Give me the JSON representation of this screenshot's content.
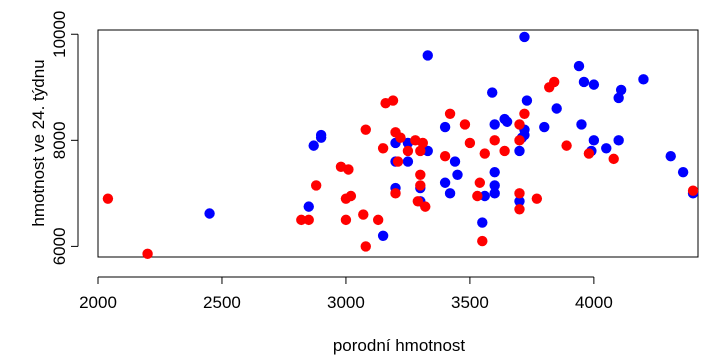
{
  "chart_data": {
    "type": "scatter",
    "title": "",
    "xlabel": "porodní hmotnost",
    "ylabel": "hmotnost ve 24. týdnu",
    "xlim": [
      2000,
      4420
    ],
    "ylim": [
      5800,
      10080
    ],
    "x_ticks": [
      "2000",
      "2500",
      "3000",
      "3500",
      "4000"
    ],
    "y_ticks": [
      "6000",
      "8000",
      "10000"
    ],
    "grid": false,
    "legend": "none",
    "series": [
      {
        "color": "#0000ff",
        "points": [
          [
            2450,
            6620
          ],
          [
            2850,
            6750
          ],
          [
            2870,
            7900
          ],
          [
            2900,
            8050
          ],
          [
            2900,
            8100
          ],
          [
            3150,
            6200
          ],
          [
            3200,
            7100
          ],
          [
            3200,
            7600
          ],
          [
            3200,
            7950
          ],
          [
            3250,
            7600
          ],
          [
            3250,
            7950
          ],
          [
            3300,
            6850
          ],
          [
            3300,
            7100
          ],
          [
            3330,
            7800
          ],
          [
            3330,
            9600
          ],
          [
            3400,
            7200
          ],
          [
            3400,
            8250
          ],
          [
            3420,
            7000
          ],
          [
            3440,
            7600
          ],
          [
            3450,
            7350
          ],
          [
            3550,
            6450
          ],
          [
            3560,
            6950
          ],
          [
            3590,
            8900
          ],
          [
            3600,
            7000
          ],
          [
            3600,
            7150
          ],
          [
            3600,
            7400
          ],
          [
            3600,
            8300
          ],
          [
            3640,
            8400
          ],
          [
            3650,
            8350
          ],
          [
            3700,
            6850
          ],
          [
            3700,
            7800
          ],
          [
            3710,
            8050
          ],
          [
            3720,
            8200
          ],
          [
            3720,
            8100
          ],
          [
            3720,
            9950
          ],
          [
            3730,
            8750
          ],
          [
            3800,
            8250
          ],
          [
            3850,
            8600
          ],
          [
            3940,
            9400
          ],
          [
            3950,
            8300
          ],
          [
            3960,
            9100
          ],
          [
            3990,
            7800
          ],
          [
            4000,
            8000
          ],
          [
            4000,
            9050
          ],
          [
            4050,
            7850
          ],
          [
            4100,
            8000
          ],
          [
            4100,
            8800
          ],
          [
            4110,
            8950
          ],
          [
            4200,
            9150
          ],
          [
            4310,
            7700
          ],
          [
            4360,
            7400
          ],
          [
            4400,
            7000
          ]
        ]
      },
      {
        "color": "#ff0000",
        "points": [
          [
            2040,
            6900
          ],
          [
            2200,
            5860
          ],
          [
            2820,
            6500
          ],
          [
            2850,
            6500
          ],
          [
            2880,
            7150
          ],
          [
            2980,
            7500
          ],
          [
            3000,
            6500
          ],
          [
            3000,
            6900
          ],
          [
            3010,
            7450
          ],
          [
            3020,
            6950
          ],
          [
            3070,
            6600
          ],
          [
            3080,
            6000
          ],
          [
            3080,
            8200
          ],
          [
            3130,
            6500
          ],
          [
            3150,
            7850
          ],
          [
            3160,
            8700
          ],
          [
            3190,
            8750
          ],
          [
            3200,
            7000
          ],
          [
            3200,
            8150
          ],
          [
            3210,
            7600
          ],
          [
            3220,
            8050
          ],
          [
            3250,
            7800
          ],
          [
            3280,
            8000
          ],
          [
            3290,
            6850
          ],
          [
            3300,
            7150
          ],
          [
            3300,
            7350
          ],
          [
            3300,
            7800
          ],
          [
            3310,
            7950
          ],
          [
            3320,
            6750
          ],
          [
            3400,
            7700
          ],
          [
            3420,
            8500
          ],
          [
            3480,
            8300
          ],
          [
            3500,
            7950
          ],
          [
            3530,
            6950
          ],
          [
            3540,
            7200
          ],
          [
            3550,
            6100
          ],
          [
            3560,
            7750
          ],
          [
            3600,
            8000
          ],
          [
            3640,
            7800
          ],
          [
            3700,
            7000
          ],
          [
            3700,
            6700
          ],
          [
            3700,
            8000
          ],
          [
            3700,
            8300
          ],
          [
            3720,
            8500
          ],
          [
            3770,
            6900
          ],
          [
            3820,
            9000
          ],
          [
            3840,
            9100
          ],
          [
            3890,
            7900
          ],
          [
            3980,
            7750
          ],
          [
            4080,
            7650
          ],
          [
            4400,
            7050
          ]
        ]
      }
    ]
  }
}
